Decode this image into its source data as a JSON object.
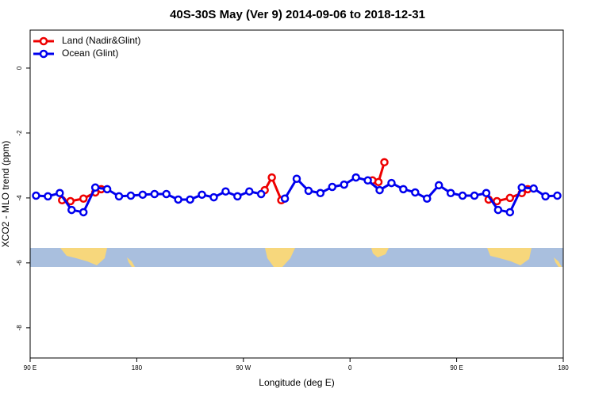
{
  "chart_data": {
    "type": "line",
    "title": "40S-30S May (Ver 9)   2014-09-06 to 2018-12-31",
    "x_label": "Longitude (deg E)",
    "y_label": "XCO2 - MLO trend (ppm)",
    "xlim": [
      90,
      540
    ],
    "xticks": [
      {
        "value": 90,
        "label": "90 E"
      },
      {
        "value": 180,
        "label": "180"
      },
      {
        "value": 270,
        "label": "90 W"
      },
      {
        "value": 360,
        "label": "0"
      },
      {
        "value": 450,
        "label": "90 E"
      },
      {
        "value": 540,
        "label": "180"
      }
    ],
    "ylim": [
      -8.93,
      1.17
    ],
    "yticks": [
      0,
      -2,
      -4,
      -6,
      -8
    ],
    "legend": "topleft",
    "series": [
      {
        "name": "Land (Nadir&Glint)",
        "color": "#ee0000",
        "x": [
          117,
          124,
          135,
          145,
          150,
          null,
          288,
          294,
          302,
          null,
          379,
          384,
          389,
          null,
          477,
          484,
          495,
          505,
          510
        ],
        "values": [
          -4.07,
          -4.1,
          -4.02,
          -3.83,
          -3.73,
          null,
          -3.76,
          -3.37,
          -4.07,
          null,
          -3.46,
          -3.51,
          -2.9,
          null,
          -4.05,
          -4.1,
          -4.0,
          -3.85,
          -3.73
        ]
      },
      {
        "name": "Ocean (Glint)",
        "color": "#0000ee",
        "x": [
          95,
          105,
          115,
          125,
          135,
          145,
          155,
          165,
          175,
          185,
          195,
          205,
          215,
          225,
          235,
          245,
          255,
          265,
          275,
          285,
          295,
          305,
          315,
          325,
          335,
          345,
          355,
          365,
          375,
          385,
          395,
          405,
          415,
          425,
          435,
          445,
          455,
          465,
          475,
          485,
          495,
          505,
          515,
          525,
          535
        ],
        "values": [
          -3.93,
          -3.95,
          -3.85,
          -4.37,
          -4.44,
          -3.68,
          -3.73,
          -3.95,
          -3.93,
          -3.9,
          -3.88,
          -3.88,
          -4.05,
          -4.05,
          -3.9,
          -3.98,
          -3.8,
          -3.95,
          -3.8,
          -3.88,
          null,
          -4.02,
          -3.41,
          -3.78,
          -3.85,
          -3.66,
          -3.59,
          -3.37,
          -3.46,
          -3.76,
          -3.54,
          -3.73,
          -3.83,
          -4.02,
          -3.61,
          -3.85,
          -3.93,
          -3.93,
          -3.85,
          -4.37,
          -4.44,
          -3.68,
          -3.71,
          -3.95,
          -3.93
        ]
      }
    ]
  }
}
